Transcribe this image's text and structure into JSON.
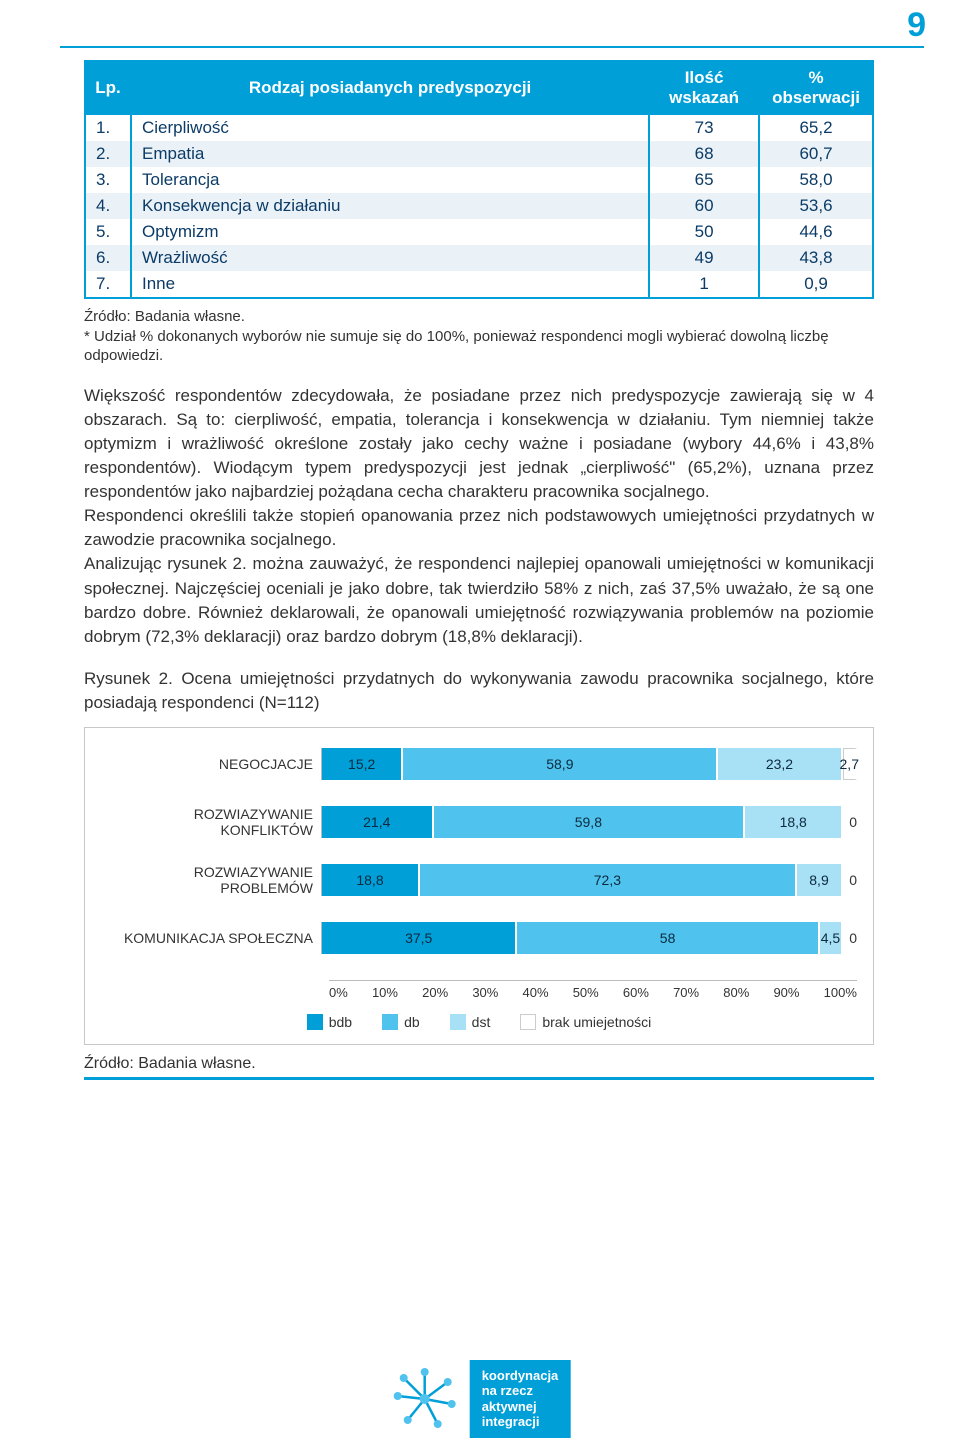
{
  "page_number": "9",
  "table": {
    "headers": {
      "lp": "Lp.",
      "rodzaj": "Rodzaj posiadanych predyspozycji",
      "ilosc": "Ilość wskazań",
      "obs": "% obserwacji"
    },
    "rows": [
      {
        "lp": "1.",
        "label": "Cierpliwość",
        "ilosc": "73",
        "obs": "65,2"
      },
      {
        "lp": "2.",
        "label": "Empatia",
        "ilosc": "68",
        "obs": "60,7"
      },
      {
        "lp": "3.",
        "label": "Tolerancja",
        "ilosc": "65",
        "obs": "58,0"
      },
      {
        "lp": "4.",
        "label": "Konsekwencja w działaniu",
        "ilosc": "60",
        "obs": "53,6"
      },
      {
        "lp": "5.",
        "label": "Optymizm",
        "ilosc": "50",
        "obs": "44,6"
      },
      {
        "lp": "6.",
        "label": "Wrażliwość",
        "ilosc": "49",
        "obs": "43,8"
      },
      {
        "lp": "7.",
        "label": "Inne",
        "ilosc": "1",
        "obs": "0,9"
      }
    ]
  },
  "source_line": "Źródło: Badania własne.",
  "note_line": "* Udział % dokonanych wyborów nie sumuje się do 100%, ponieważ respondenci mogli wybierać dowolną liczbę odpowiedzi.",
  "paragraph1": "Większość respondentów zdecydowała, że posiadane przez nich predyspozycje zawierają się w 4 obszarach. Są to: cierpliwość, empatia, tolerancja i konsekwencja w działaniu. Tym niemniej także optymizm i wrażliwość określone zostały jako cechy ważne i posiadane (wybory 44,6% i 43,8% respondentów). Wiodącym typem predyspozycji jest jednak „cierpliwość\" (65,2%), uznana przez respondentów jako najbardziej pożądana cecha charakteru pracownika socjalnego.",
  "paragraph2": "Respondenci określili także stopień opanowania przez nich podstawowych umiejętności przydatnych w zawodzie pracownika socjalnego.",
  "paragraph3": "Analizując rysunek 2. można zauważyć, że respondenci najlepiej opanowali umiejętności w komunikacji społecznej. Najczęściej oceniali je jako dobre, tak twierdziło 58% z nich, zaś 37,5% uważało, że są one bardzo dobre. Również deklarowali, że opanowali umiejętność rozwiązywania problemów na poziomie dobrym (72,3% deklaracji) oraz bardzo dobrym (18,8% deklaracji).",
  "figure_caption": "Rysunek 2. Ocena umiejętności przydatnych do wykonywania zawodu pracownika socjalnego, które posiadają respondenci (N=112)",
  "chart": {
    "type": "stacked-bar-horizontal",
    "colors": {
      "bdb": "#009fd8",
      "db": "#4fc3ee",
      "dst": "#a8e0f5",
      "brak": "#ffffff",
      "border": "#c7c7c7",
      "axis": "#bbbbbb",
      "text": "#333333"
    },
    "categories": [
      {
        "label": "NEGOCJACJE",
        "segments": [
          {
            "v": 15.2,
            "t": "15,2"
          },
          {
            "v": 58.9,
            "t": "58,9"
          },
          {
            "v": 23.2,
            "t": "23,2"
          },
          {
            "v": 2.7,
            "t": "2,7"
          }
        ],
        "trailing": ""
      },
      {
        "label": "ROZWIAZYWANIE KONFLIKTÓW",
        "segments": [
          {
            "v": 21.4,
            "t": "21,4"
          },
          {
            "v": 59.8,
            "t": "59,8"
          },
          {
            "v": 18.8,
            "t": "18,8"
          },
          {
            "v": 0,
            "t": ""
          }
        ],
        "trailing": "0"
      },
      {
        "label": "ROZWIAZYWANIE PROBLEMÓW",
        "segments": [
          {
            "v": 18.8,
            "t": "18,8"
          },
          {
            "v": 72.3,
            "t": "72,3"
          },
          {
            "v": 8.9,
            "t": "8,9"
          },
          {
            "v": 0,
            "t": ""
          }
        ],
        "trailing": "0"
      },
      {
        "label": "KOMUNIKACJA SPOŁECZNA",
        "segments": [
          {
            "v": 37.5,
            "t": "37,5"
          },
          {
            "v": 58,
            "t": "58"
          },
          {
            "v": 4.5,
            "t": "4,5"
          },
          {
            "v": 0,
            "t": ""
          }
        ],
        "trailing": "0"
      }
    ],
    "xticks": [
      "0%",
      "10%",
      "20%",
      "30%",
      "40%",
      "50%",
      "60%",
      "70%",
      "80%",
      "90%",
      "100%"
    ],
    "legend": [
      {
        "key": "bdb",
        "label": "bdb"
      },
      {
        "key": "db",
        "label": "db"
      },
      {
        "key": "dst",
        "label": "dst"
      },
      {
        "key": "brak",
        "label": "brak umiejetności"
      }
    ]
  },
  "source2": "Źródło: Badania własne.",
  "footer": {
    "lines": [
      "koordynacja",
      "na rzecz",
      "aktywnej",
      "integracji"
    ],
    "logo_color": "#009fd8",
    "dot_color": "#4fc3ee"
  }
}
